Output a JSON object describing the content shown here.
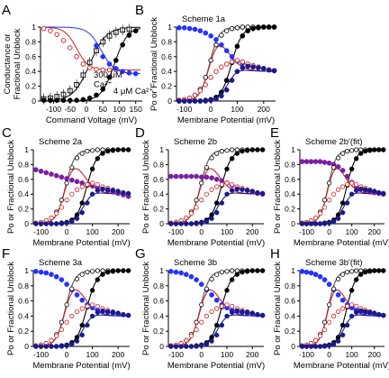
{
  "figure": {
    "colors": {
      "black": "#000000",
      "red": "#cc1f1f",
      "blue": "#2233ff",
      "purple": "#7a1fa2",
      "navy": "#1a1a8c",
      "gray": "#555555"
    }
  },
  "chart_data": [
    {
      "panel": "A",
      "type": "scatter",
      "title": "",
      "xlabel": "Command Voltage (mV)",
      "ylabel": "Conductance or Fractional Unblock",
      "xlim": [
        -140,
        170
      ],
      "ylim": [
        0,
        1
      ],
      "xticks": [
        -100,
        -50,
        0,
        50,
        100,
        150
      ],
      "xtick_labels": [
        "-100",
        "-50",
        "0",
        "50",
        "100",
        "150"
      ],
      "yticks": [
        0,
        0.2,
        0.4,
        0.6,
        0.8,
        1
      ],
      "ytick_labels": [
        "0",
        "0.2",
        "0.4",
        "0.6",
        "0.8",
        "1"
      ],
      "annotations": [
        {
          "text": "300 μM",
          "x": 22,
          "y": 0.32
        },
        {
          "text": "Ca²⁺",
          "x": 22,
          "y": 0.19
        },
        {
          "text": "4 μM Ca²⁺",
          "x": 82,
          "y": 0.1
        }
      ],
      "series": [
        {
          "marker": "open-square",
          "color": "#000000",
          "x": [
            -130,
            -110,
            -90,
            -70,
            -50,
            -30,
            -10,
            10,
            30,
            50,
            70,
            90,
            110,
            130
          ],
          "y": [
            0.03,
            0.04,
            0.06,
            0.09,
            0.14,
            0.22,
            0.35,
            0.52,
            0.68,
            0.8,
            0.88,
            0.93,
            0.96,
            0.97
          ]
        },
        {
          "marker": "filled-circle",
          "color": "#000000",
          "x": [
            -130,
            -110,
            -90,
            -70,
            -50,
            -30,
            -10,
            10,
            30,
            50,
            70,
            90,
            110,
            130,
            150
          ],
          "y": [
            0.01,
            0.01,
            0.01,
            0.01,
            0.01,
            0.01,
            0.02,
            0.04,
            0.08,
            0.16,
            0.32,
            0.55,
            0.76,
            0.89,
            0.95
          ]
        },
        {
          "marker": "open-circle-red",
          "color": "#cc1f1f",
          "x": [
            -130,
            -110,
            -90,
            -70,
            -50,
            -30,
            -10,
            10,
            30,
            50,
            70,
            90
          ],
          "y": [
            0.98,
            0.95,
            0.9,
            0.82,
            0.72,
            0.6,
            0.5,
            0.45,
            0.43,
            0.42,
            0.42,
            0.42
          ]
        },
        {
          "marker": "filled-circle",
          "color": "#2233ff",
          "x": [
            30,
            50,
            70,
            90,
            110,
            130,
            150
          ],
          "y": [
            0.75,
            0.6,
            0.5,
            0.44,
            0.4,
            0.38,
            0.37
          ]
        }
      ]
    },
    {
      "panel": "B",
      "type": "scatter",
      "title": "Scheme 1a",
      "xlabel": "Membrane Potential (mV)",
      "ylabel": "Po or Fractional Unblock",
      "xlim": [
        -130,
        245
      ],
      "ylim": [
        0,
        1
      ],
      "xticks": [
        -100,
        0,
        100,
        200
      ],
      "xtick_labels": [
        "-100",
        "0",
        "100",
        "200"
      ],
      "yticks": [
        0,
        0.2,
        0.4,
        0.6,
        0.8,
        1
      ],
      "ytick_labels": [
        "0",
        "0.2",
        "0.4",
        "0.6",
        "0.8",
        "1"
      ],
      "series": [
        {
          "marker": "open-circle-black",
          "color": "#000000",
          "x": [
            -120,
            -100,
            -80,
            -60,
            -40,
            -20,
            0,
            20,
            40,
            60,
            80,
            100,
            120,
            140,
            160,
            180,
            200,
            220,
            240
          ],
          "y": [
            0.01,
            0.02,
            0.04,
            0.08,
            0.16,
            0.32,
            0.55,
            0.76,
            0.89,
            0.95,
            0.98,
            0.99,
            1,
            1,
            1,
            1,
            1,
            1,
            1
          ]
        },
        {
          "marker": "filled-circle",
          "color": "#000000",
          "x": [
            -120,
            -100,
            -80,
            -60,
            -40,
            -20,
            0,
            20,
            40,
            60,
            80,
            100,
            120,
            140,
            160,
            180,
            200,
            220,
            240
          ],
          "y": [
            0,
            0,
            0,
            0,
            0,
            0.01,
            0.02,
            0.05,
            0.12,
            0.28,
            0.52,
            0.74,
            0.88,
            0.95,
            0.98,
            0.99,
            1,
            1,
            1
          ]
        },
        {
          "marker": "filled-circle",
          "color": "#2233ff",
          "x": [
            -120,
            -100,
            -80,
            -60,
            -40,
            -20,
            0,
            20,
            40,
            60,
            80,
            100,
            120,
            140,
            160,
            180,
            200,
            220,
            240
          ],
          "y": [
            0.99,
            0.99,
            0.98,
            0.97,
            0.95,
            0.92,
            0.88,
            0.83,
            0.76,
            0.68,
            0.6,
            0.54,
            0.51,
            0.49,
            0.47,
            0.45,
            0.44,
            0.42,
            0.41
          ]
        },
        {
          "marker": "open-circle-red",
          "color": "#cc1f1f",
          "x": [
            -120,
            -100,
            -80,
            -60,
            -40,
            -20,
            0,
            20,
            40,
            60,
            80,
            100,
            120,
            140,
            160,
            180,
            200,
            220,
            240
          ],
          "y": [
            0.01,
            0.02,
            0.04,
            0.08,
            0.14,
            0.22,
            0.32,
            0.4,
            0.46,
            0.5,
            0.53,
            0.55,
            0.53,
            0.5,
            0.48,
            0.46,
            0.44,
            0.42,
            0.41
          ]
        },
        {
          "marker": "filled-circle",
          "color": "#1a1a8c",
          "x": [
            -120,
            -100,
            -80,
            -60,
            -40,
            -20,
            0,
            20,
            40,
            60,
            80,
            100,
            120,
            140,
            160,
            180,
            200,
            220,
            240
          ],
          "y": [
            0,
            0,
            0,
            0,
            0,
            0,
            0.01,
            0.03,
            0.07,
            0.15,
            0.28,
            0.4,
            0.45,
            0.47,
            0.46,
            0.45,
            0.44,
            0.42,
            0.41
          ]
        }
      ]
    },
    {
      "panel": "C",
      "type": "scatter",
      "title": "Scheme 2a",
      "xlabel": "Membrane Potential (mV)",
      "ylabel": "Po or Fractional Unblock",
      "xlim": [
        -130,
        245
      ],
      "ylim": [
        0,
        1
      ],
      "xticks": [
        -100,
        0,
        100,
        200
      ],
      "xtick_labels": [
        "-100",
        "0",
        "100",
        "200"
      ],
      "yticks": [
        0,
        0.2,
        0.4,
        0.6,
        0.8,
        1
      ],
      "ytick_labels": [
        "0",
        "0.2",
        "0.4",
        "0.6",
        "0.8",
        "1"
      ],
      "series": [
        {
          "marker": "filled-circle",
          "color": "#7a1fa2",
          "x": [
            -120,
            -100,
            -80,
            -60,
            -40,
            -20,
            0,
            20,
            40,
            60,
            80,
            100,
            120,
            140,
            160,
            180,
            200,
            220,
            240
          ],
          "y": [
            0.73,
            0.71,
            0.69,
            0.67,
            0.65,
            0.63,
            0.61,
            0.59,
            0.57,
            0.55,
            0.53,
            0.51,
            0.49,
            0.47,
            0.45,
            0.43,
            0.41,
            0.39,
            0.37
          ]
        }
      ]
    },
    {
      "panel": "D",
      "type": "scatter",
      "title": "Scheme 2b",
      "xlabel": "Membrane Potential (mV)",
      "ylabel": "Po or Fractional Unblock",
      "xlim": [
        -130,
        245
      ],
      "ylim": [
        0,
        1
      ],
      "xticks": [
        -100,
        0,
        100,
        200
      ],
      "xtick_labels": [
        "-100",
        "0",
        "100",
        "200"
      ],
      "yticks": [
        0,
        0.2,
        0.4,
        0.6,
        0.8,
        1
      ],
      "ytick_labels": [
        "0",
        "0.2",
        "0.4",
        "0.6",
        "0.8",
        "1"
      ],
      "series": [
        {
          "marker": "filled-circle",
          "color": "#7a1fa2",
          "x": [
            -120,
            -100,
            -80,
            -60,
            -40,
            -20,
            0,
            20,
            40,
            60,
            80,
            100,
            120,
            140,
            160,
            180,
            200,
            220,
            240
          ],
          "y": [
            0.64,
            0.64,
            0.64,
            0.64,
            0.64,
            0.64,
            0.63,
            0.63,
            0.62,
            0.6,
            0.58,
            0.55,
            0.52,
            0.49,
            0.47,
            0.45,
            0.43,
            0.41,
            0.4
          ]
        }
      ]
    },
    {
      "panel": "E",
      "type": "scatter",
      "title": "Scheme 2b'(fit)",
      "xlabel": "Membrane Potential (mV)",
      "ylabel": "Po or Fractional Unblock",
      "xlim": [
        -130,
        245
      ],
      "ylim": [
        0,
        1
      ],
      "xticks": [
        -100,
        0,
        100,
        200
      ],
      "xtick_labels": [
        "-100",
        "0",
        "100",
        "200"
      ],
      "yticks": [
        0,
        0.2,
        0.4,
        0.6,
        0.8,
        1
      ],
      "ytick_labels": [
        "0",
        "0.2",
        "0.4",
        "0.6",
        "0.8",
        "1"
      ],
      "series": [
        {
          "marker": "filled-circle",
          "color": "#7a1fa2",
          "x": [
            -120,
            -100,
            -80,
            -60,
            -40,
            -20,
            0,
            20,
            40,
            60,
            80,
            100,
            120,
            140,
            160,
            180,
            200,
            220,
            240
          ],
          "y": [
            0.84,
            0.84,
            0.84,
            0.84,
            0.84,
            0.83,
            0.82,
            0.8,
            0.77,
            0.72,
            0.64,
            0.56,
            0.5,
            0.47,
            0.45,
            0.43,
            0.42,
            0.41,
            0.4
          ]
        }
      ]
    },
    {
      "panel": "F",
      "type": "scatter",
      "title": "Scheme 3a",
      "xlabel": "Membrane Potential (mV)",
      "ylabel": "Po or Fractional Unblock",
      "xlim": [
        -130,
        245
      ],
      "ylim": [
        0,
        1
      ],
      "xticks": [
        -100,
        0,
        100,
        200
      ],
      "xtick_labels": [
        "-100",
        "0",
        "100",
        "200"
      ],
      "yticks": [
        0,
        0.2,
        0.4,
        0.6,
        0.8,
        1
      ],
      "ytick_labels": [
        "0",
        "0.2",
        "0.4",
        "0.6",
        "0.8",
        "1"
      ],
      "series": [
        {
          "marker": "filled-circle",
          "color": "#2233ff",
          "x": [
            -120,
            -100,
            -80,
            -60,
            -40,
            -20,
            0,
            20,
            40,
            60,
            80,
            100,
            120,
            140,
            160,
            180,
            200,
            220,
            240
          ],
          "y": [
            0.99,
            0.98,
            0.97,
            0.95,
            0.92,
            0.88,
            0.82,
            0.75,
            0.68,
            0.61,
            0.55,
            0.51,
            0.48,
            0.46,
            0.45,
            0.44,
            0.43,
            0.42,
            0.41
          ]
        }
      ]
    },
    {
      "panel": "G",
      "type": "scatter",
      "title": "Scheme 3b",
      "xlabel": "Membrane Potential (mV)",
      "ylabel": "Po or Fractional Unblock",
      "xlim": [
        -130,
        245
      ],
      "ylim": [
        0,
        1
      ],
      "xticks": [
        -100,
        0,
        100,
        200
      ],
      "xtick_labels": [
        "-100",
        "0",
        "100",
        "200"
      ],
      "yticks": [
        0,
        0.2,
        0.4,
        0.6,
        0.8,
        1
      ],
      "ytick_labels": [
        "0",
        "0.2",
        "0.4",
        "0.6",
        "0.8",
        "1"
      ],
      "series": [
        {
          "marker": "filled-circle",
          "color": "#2233ff",
          "x": [
            -120,
            -100,
            -80,
            -60,
            -40,
            -20,
            0,
            20,
            40,
            60,
            80,
            100,
            120,
            140,
            160,
            180,
            200,
            220,
            240
          ],
          "y": [
            0.99,
            0.98,
            0.97,
            0.95,
            0.92,
            0.88,
            0.82,
            0.75,
            0.68,
            0.61,
            0.55,
            0.51,
            0.48,
            0.46,
            0.45,
            0.44,
            0.43,
            0.42,
            0.41
          ]
        }
      ]
    },
    {
      "panel": "H",
      "type": "scatter",
      "title": "Scheme 3b'(fit)",
      "xlabel": "Membrane Potential (mV)",
      "ylabel": "Po or Fractional Unblock",
      "xlim": [
        -130,
        245
      ],
      "ylim": [
        0,
        1
      ],
      "xticks": [
        -100,
        0,
        100,
        200
      ],
      "xtick_labels": [
        "-100",
        "0",
        "100",
        "200"
      ],
      "yticks": [
        0,
        0.2,
        0.4,
        0.6,
        0.8,
        1
      ],
      "ytick_labels": [
        "0",
        "0.2",
        "0.4",
        "0.6",
        "0.8",
        "1"
      ],
      "series": [
        {
          "marker": "filled-circle",
          "color": "#2233ff",
          "x": [
            -120,
            -100,
            -80,
            -60,
            -40,
            -20,
            0,
            20,
            40,
            60,
            80,
            100,
            120,
            140,
            160,
            180,
            200,
            220,
            240
          ],
          "y": [
            0.99,
            0.98,
            0.97,
            0.95,
            0.92,
            0.88,
            0.82,
            0.75,
            0.68,
            0.61,
            0.55,
            0.51,
            0.48,
            0.46,
            0.45,
            0.44,
            0.43,
            0.42,
            0.41
          ]
        }
      ]
    }
  ]
}
